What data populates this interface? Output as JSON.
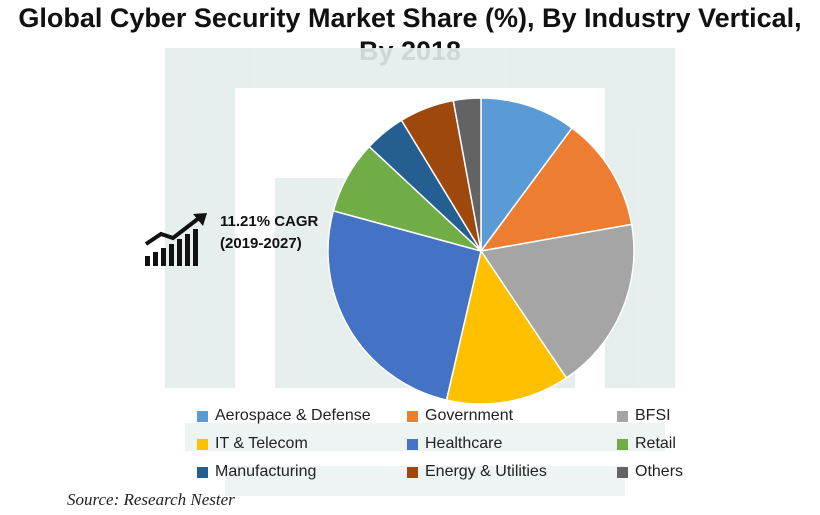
{
  "chart_data": {
    "type": "pie",
    "title": "Global Cyber Security Market Share (%), By Industry Vertical, By 2018",
    "title_lines": [
      "Global Cyber Security Market Share (%), By Industry Vertical,",
      "By 2018"
    ],
    "slices": [
      {
        "label": "Aerospace & Defense",
        "value": 10.5,
        "color": "#5b9bd5"
      },
      {
        "label": "Government",
        "value": 12.5,
        "color": "#ed7d31"
      },
      {
        "label": "BFSI",
        "value": 19.0,
        "color": "#a5a5a5"
      },
      {
        "label": "IT & Telecom",
        "value": 13.5,
        "color": "#ffc000"
      },
      {
        "label": "Healthcare",
        "value": 26.5,
        "color": "#4472c4"
      },
      {
        "label": "Retail",
        "value": 8.0,
        "color": "#70ad47"
      },
      {
        "label": "Manufacturing",
        "value": 4.5,
        "color": "#255e91"
      },
      {
        "label": "Energy & Utilities",
        "value": 6.0,
        "color": "#9e480e"
      },
      {
        "label": "Others",
        "value": 3.0,
        "color": "#636363"
      }
    ],
    "legend_position": "bottom",
    "annotation": {
      "line1": "11.21% CAGR",
      "line2": "(2019-2027)"
    },
    "source": "Source: Research Nester"
  }
}
